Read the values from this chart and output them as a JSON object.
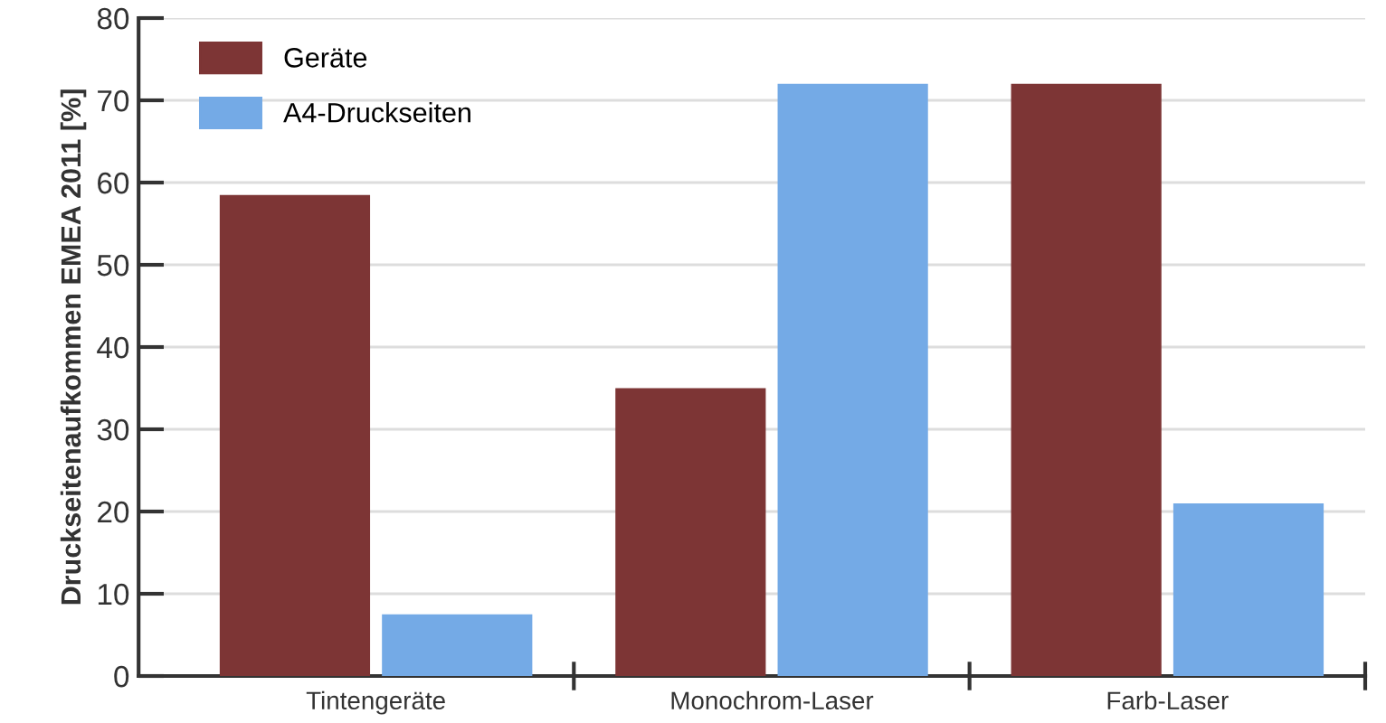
{
  "chart_data": {
    "type": "bar",
    "ylabel": "Druckseitenaufkommen EMEA 2011 [%]",
    "categories": [
      "Tintengeräte",
      "Monochrom-Laser",
      "Farb-Laser"
    ],
    "series": [
      {
        "name": "Geräte",
        "color": "#7d3535",
        "values": [
          58.5,
          35,
          72
        ]
      },
      {
        "name": "A4-Druckseiten",
        "color": "#74aae6",
        "values": [
          7.5,
          72,
          21
        ]
      }
    ],
    "ylim": [
      0,
      80
    ],
    "yticks": [
      0,
      10,
      20,
      30,
      40,
      50,
      60,
      70,
      80
    ],
    "grid": "y",
    "legend": "top left"
  }
}
